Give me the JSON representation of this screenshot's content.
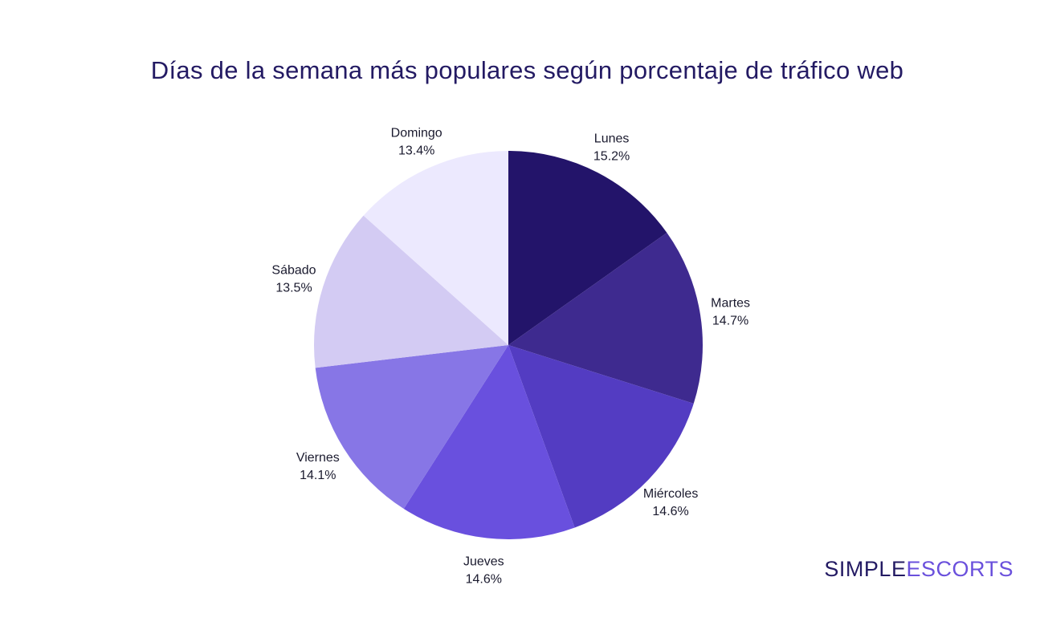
{
  "chart_data": {
    "type": "pie",
    "title": "Días de la semana más populares según porcentaje de tráfico web",
    "slices": [
      {
        "label": "Lunes",
        "value": 15.2,
        "value_label": "15.2%",
        "color": "#23146a"
      },
      {
        "label": "Martes",
        "value": 14.7,
        "value_label": "14.7%",
        "color": "#3e2a8f"
      },
      {
        "label": "Miércoles",
        "value": 14.6,
        "value_label": "14.6%",
        "color": "#533cc2"
      },
      {
        "label": "Jueves",
        "value": 14.6,
        "value_label": "14.6%",
        "color": "#6950de"
      },
      {
        "label": "Viernes",
        "value": 14.1,
        "value_label": "14.1%",
        "color": "#8776e6"
      },
      {
        "label": "Sábado",
        "value": 13.5,
        "value_label": "13.5%",
        "color": "#d3cbf3"
      },
      {
        "label": "Domingo",
        "value": 13.4,
        "value_label": "13.4%",
        "color": "#ece9fe"
      }
    ],
    "start_angle": "12 o'clock",
    "direction": "clockwise",
    "legend": "none"
  },
  "brand": {
    "part1": "SIMPLE",
    "part2": "ESCORTS"
  }
}
